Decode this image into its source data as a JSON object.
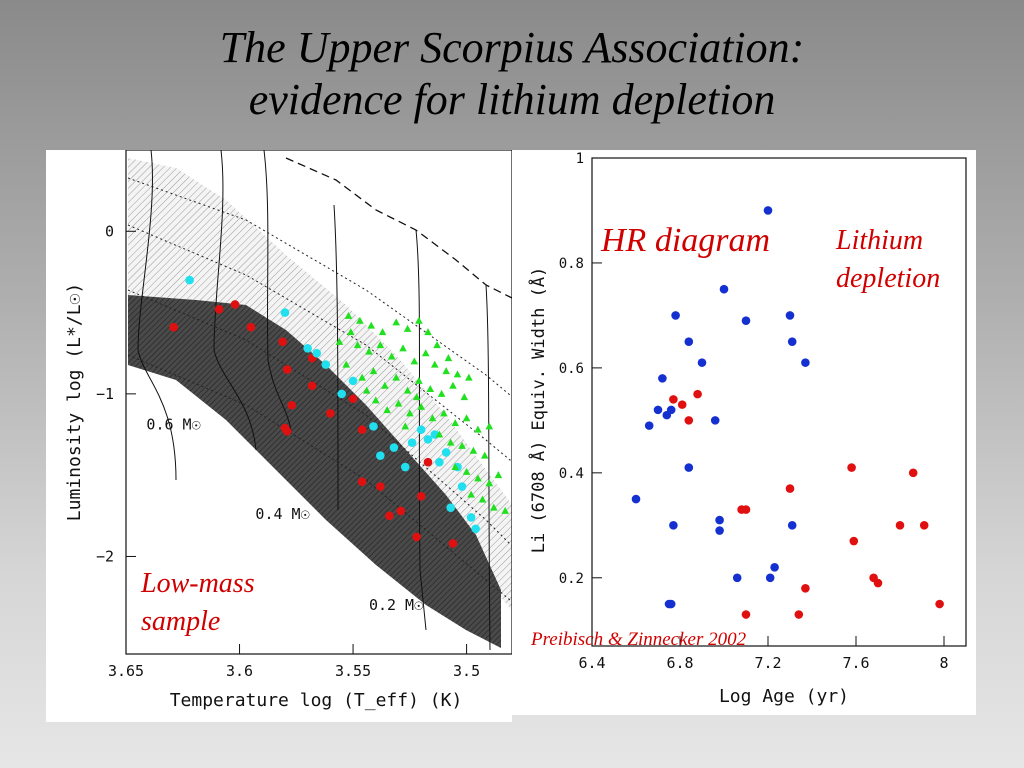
{
  "slide": {
    "title_line1": "The Upper Scorpius Association:",
    "title_line2": "evidence for lithium depletion"
  },
  "overlays": {
    "hr_diagram": "HR diagram",
    "lithium_line1": "Lithium",
    "lithium_line2": "depletion",
    "lowmass_line1": "Low-mass",
    "lowmass_line2": "sample",
    "citation": "Preibisch & Zinnecker 2002"
  },
  "colors": {
    "red": "#e01010",
    "blue": "#1530d0",
    "cyan": "#20e0f0",
    "green": "#20e020",
    "accent_text": "#d10000"
  },
  "chart_data": [
    {
      "type": "scatter",
      "name": "HR diagram",
      "title": "",
      "xlabel": "Temperature log (T_eff) (K)",
      "ylabel": "Luminosity log (L*/L☉)",
      "xlim": [
        3.65,
        3.48
      ],
      "ylim": [
        -2.6,
        0.5
      ],
      "x_reversed": true,
      "xticks": [
        3.65,
        3.6,
        3.55,
        3.5
      ],
      "xtick_labels": [
        "3.65",
        "3.6",
        "3.55",
        "3.5"
      ],
      "yticks": [
        0,
        -1,
        -2
      ],
      "ytick_labels": [
        "0",
        "−1",
        "−2"
      ],
      "mass_labels": [
        {
          "text": "0.6 M☉",
          "x": 3.641,
          "y": -1.22
        },
        {
          "text": "0.4 M☉",
          "x": 3.593,
          "y": -1.77
        },
        {
          "text": "0.2 M☉",
          "x": 3.543,
          "y": -2.33
        }
      ],
      "grid": false,
      "series": [
        {
          "marker": "circle",
          "color": "red",
          "points": [
            [
              3.629,
              -0.59
            ],
            [
              3.609,
              -0.48
            ],
            [
              3.602,
              -0.45
            ],
            [
              3.595,
              -0.59
            ],
            [
              3.581,
              -0.68
            ],
            [
              3.579,
              -0.85
            ],
            [
              3.58,
              -1.21
            ],
            [
              3.579,
              -1.23
            ],
            [
              3.577,
              -1.07
            ],
            [
              3.568,
              -0.95
            ],
            [
              3.568,
              -0.78
            ],
            [
              3.56,
              -1.12
            ],
            [
              3.55,
              -1.03
            ],
            [
              3.546,
              -1.22
            ],
            [
              3.546,
              -1.54
            ],
            [
              3.538,
              -1.57
            ],
            [
              3.534,
              -1.75
            ],
            [
              3.529,
              -1.72
            ],
            [
              3.522,
              -1.88
            ],
            [
              3.52,
              -1.63
            ],
            [
              3.517,
              -1.42
            ],
            [
              3.506,
              -1.92
            ]
          ]
        },
        {
          "marker": "circle",
          "color": "cyan",
          "points": [
            [
              3.622,
              -0.3
            ],
            [
              3.58,
              -0.5
            ],
            [
              3.57,
              -0.72
            ],
            [
              3.566,
              -0.75
            ],
            [
              3.562,
              -0.82
            ],
            [
              3.555,
              -1.0
            ],
            [
              3.55,
              -0.92
            ],
            [
              3.541,
              -1.2
            ],
            [
              3.538,
              -1.38
            ],
            [
              3.532,
              -1.33
            ],
            [
              3.527,
              -1.45
            ],
            [
              3.524,
              -1.3
            ],
            [
              3.52,
              -1.22
            ],
            [
              3.517,
              -1.28
            ],
            [
              3.514,
              -1.25
            ],
            [
              3.512,
              -1.42
            ],
            [
              3.509,
              -1.36
            ],
            [
              3.507,
              -1.7
            ],
            [
              3.504,
              -1.45
            ],
            [
              3.502,
              -1.57
            ],
            [
              3.498,
              -1.76
            ],
            [
              3.496,
              -1.83
            ]
          ]
        },
        {
          "marker": "triangle",
          "color": "green",
          "points": [
            [
              3.552,
              -0.52
            ],
            [
              3.547,
              -0.55
            ],
            [
              3.542,
              -0.58
            ],
            [
              3.537,
              -0.62
            ],
            [
              3.531,
              -0.56
            ],
            [
              3.526,
              -0.6
            ],
            [
              3.521,
              -0.55
            ],
            [
              3.548,
              -0.7
            ],
            [
              3.543,
              -0.74
            ],
            [
              3.538,
              -0.7
            ],
            [
              3.533,
              -0.77
            ],
            [
              3.528,
              -0.72
            ],
            [
              3.523,
              -0.8
            ],
            [
              3.518,
              -0.75
            ],
            [
              3.513,
              -0.7
            ],
            [
              3.553,
              -0.82
            ],
            [
              3.546,
              -0.9
            ],
            [
              3.541,
              -0.86
            ],
            [
              3.536,
              -0.95
            ],
            [
              3.531,
              -0.9
            ],
            [
              3.526,
              -0.98
            ],
            [
              3.521,
              -0.92
            ],
            [
              3.516,
              -0.97
            ],
            [
              3.511,
              -1.0
            ],
            [
              3.506,
              -0.95
            ],
            [
              3.501,
              -1.02
            ],
            [
              3.54,
              -1.04
            ],
            [
              3.535,
              -1.1
            ],
            [
              3.53,
              -1.06
            ],
            [
              3.525,
              -1.12
            ],
            [
              3.52,
              -1.08
            ],
            [
              3.515,
              -1.15
            ],
            [
              3.51,
              -1.12
            ],
            [
              3.505,
              -1.18
            ],
            [
              3.5,
              -1.15
            ],
            [
              3.495,
              -1.22
            ],
            [
              3.49,
              -1.2
            ],
            [
              3.517,
              -0.62
            ],
            [
              3.514,
              -0.82
            ],
            [
              3.509,
              -0.86
            ],
            [
              3.504,
              -0.88
            ],
            [
              3.499,
              -0.9
            ],
            [
              3.527,
              -1.2
            ],
            [
              3.512,
              -1.25
            ],
            [
              3.507,
              -1.3
            ],
            [
              3.502,
              -1.32
            ],
            [
              3.497,
              -1.35
            ],
            [
              3.492,
              -1.38
            ],
            [
              3.505,
              -1.45
            ],
            [
              3.5,
              -1.48
            ],
            [
              3.495,
              -1.52
            ],
            [
              3.49,
              -1.55
            ],
            [
              3.486,
              -1.5
            ],
            [
              3.498,
              -1.62
            ],
            [
              3.493,
              -1.65
            ],
            [
              3.488,
              -1.7
            ],
            [
              3.483,
              -1.72
            ],
            [
              3.556,
              -0.68
            ],
            [
              3.551,
              -0.62
            ],
            [
              3.544,
              -0.98
            ],
            [
              3.522,
              -1.02
            ],
            [
              3.508,
              -0.78
            ]
          ]
        }
      ]
    },
    {
      "type": "scatter",
      "name": "Lithium depletion",
      "title": "",
      "xlabel": "Log Age (yr)",
      "ylabel": "Li (6708 Å) Equiv. Width (Å)",
      "xlim": [
        6.4,
        8.1
      ],
      "ylim": [
        0.07,
        1.0
      ],
      "xticks": [
        6.4,
        6.8,
        7.2,
        7.6,
        8
      ],
      "xtick_labels": [
        "6.4",
        "6.8",
        "7.2",
        "7.6",
        "8"
      ],
      "yticks": [
        0.2,
        0.4,
        0.6,
        0.8,
        1
      ],
      "ytick_labels": [
        "0.2",
        "0.4",
        "0.6",
        "0.8",
        "1"
      ],
      "grid": false,
      "series": [
        {
          "marker": "circle",
          "color": "blue",
          "points": [
            [
              7.2,
              0.9
            ],
            [
              7.0,
              0.75
            ],
            [
              6.78,
              0.7
            ],
            [
              7.3,
              0.7
            ],
            [
              7.1,
              0.69
            ],
            [
              6.84,
              0.65
            ],
            [
              7.31,
              0.65
            ],
            [
              6.9,
              0.61
            ],
            [
              7.37,
              0.61
            ],
            [
              6.72,
              0.58
            ],
            [
              6.7,
              0.52
            ],
            [
              6.74,
              0.51
            ],
            [
              6.76,
              0.52
            ],
            [
              6.66,
              0.49
            ],
            [
              6.96,
              0.5
            ],
            [
              6.84,
              0.41
            ],
            [
              6.6,
              0.35
            ],
            [
              6.98,
              0.31
            ],
            [
              6.77,
              0.3
            ],
            [
              6.98,
              0.29
            ],
            [
              7.31,
              0.3
            ],
            [
              7.23,
              0.22
            ],
            [
              7.06,
              0.2
            ],
            [
              7.21,
              0.2
            ],
            [
              6.75,
              0.15
            ],
            [
              6.76,
              0.15
            ]
          ]
        },
        {
          "marker": "circle",
          "color": "red",
          "points": [
            [
              6.77,
              0.54
            ],
            [
              6.81,
              0.53
            ],
            [
              6.88,
              0.55
            ],
            [
              6.84,
              0.5
            ],
            [
              7.3,
              0.37
            ],
            [
              7.08,
              0.33
            ],
            [
              7.1,
              0.33
            ],
            [
              7.58,
              0.41
            ],
            [
              7.86,
              0.4
            ],
            [
              7.59,
              0.27
            ],
            [
              7.8,
              0.3
            ],
            [
              7.91,
              0.3
            ],
            [
              7.68,
              0.2
            ],
            [
              7.7,
              0.19
            ],
            [
              7.37,
              0.18
            ],
            [
              7.98,
              0.15
            ],
            [
              7.1,
              0.13
            ],
            [
              7.34,
              0.13
            ]
          ]
        }
      ]
    }
  ]
}
